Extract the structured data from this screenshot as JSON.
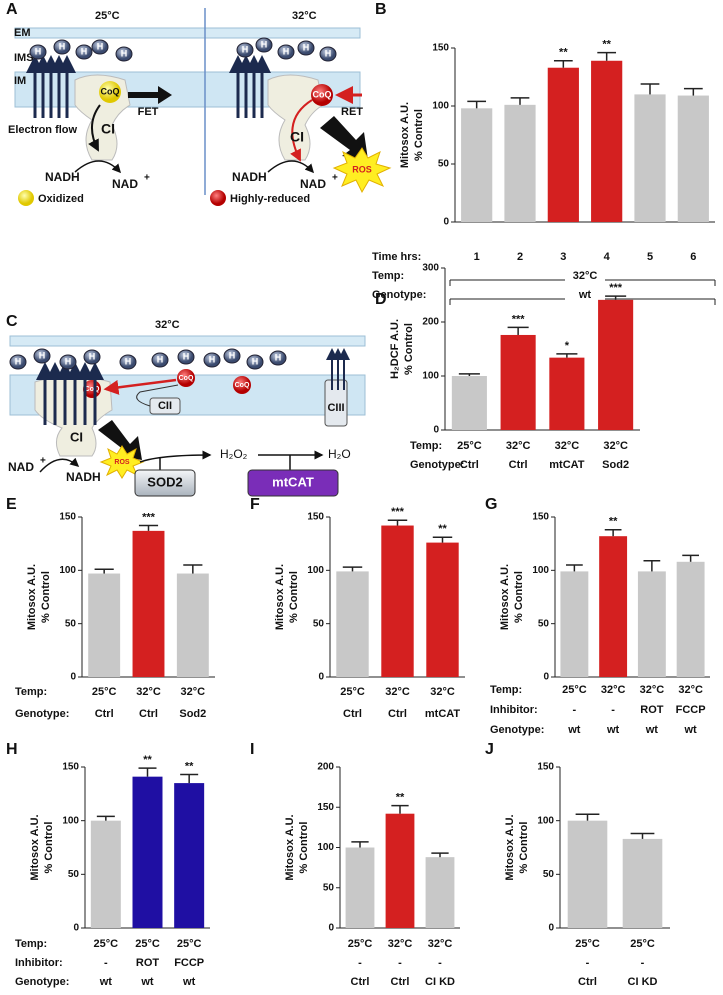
{
  "diagram_a": {
    "panel": "A",
    "temp_left": "25°C",
    "temp_right": "32°C",
    "em": "EM",
    "ims": "IMS",
    "im": "IM",
    "proton": "H",
    "coq": "CoQ",
    "fet": "FET",
    "ret": "RET",
    "ci": "CI",
    "electron_flow": "Electron flow",
    "nadh": "NADH",
    "nad": "NAD",
    "nad_sup": "+",
    "ros": "ROS",
    "oxidized": "Oxidized",
    "highly_reduced": "Highly-reduced"
  },
  "diagram_c": {
    "panel": "C",
    "temp": "32°C",
    "proton": "H",
    "coq": "CoQ",
    "cii": "CII",
    "ciii": "CIII",
    "ci": "CI",
    "ros": "ROS",
    "nad": "NAD",
    "nad_sup": "+",
    "nadh": "NADH",
    "h2o2": "H₂O₂",
    "h2o": "H₂O",
    "sod2": "SOD2",
    "mtcat": "mtCAT"
  },
  "chart_data": [
    {
      "type": "bar",
      "panel": "B",
      "ylabel": [
        "Mitosox A.U.",
        "% Control"
      ],
      "ylim": [
        0,
        150
      ],
      "yticks": [
        0,
        50,
        100,
        150
      ],
      "values": [
        98,
        101,
        133,
        139,
        110,
        109
      ],
      "errors": [
        6,
        6,
        6,
        7,
        9,
        6
      ],
      "colors": [
        "#c8c8c8",
        "#c8c8c8",
        "#d42020",
        "#d42020",
        "#c8c8c8",
        "#c8c8c8"
      ],
      "significance": [
        null,
        null,
        "**",
        "**",
        null,
        null
      ],
      "rows": [
        {
          "label": "Time hrs:",
          "values": [
            "1",
            "2",
            "3",
            "4",
            "5",
            "6"
          ]
        },
        {
          "label": "Temp:",
          "span": "32°C"
        },
        {
          "label": "Genotype:",
          "span": "wt"
        }
      ]
    },
    {
      "type": "bar",
      "panel": "D",
      "ylabel": [
        "H₂DCF A.U.",
        "% Control"
      ],
      "ylim": [
        0,
        300
      ],
      "yticks": [
        0,
        100,
        200,
        300
      ],
      "values": [
        100,
        176,
        134,
        241
      ],
      "errors": [
        4,
        14,
        7,
        7
      ],
      "colors": [
        "#c8c8c8",
        "#d42020",
        "#d42020",
        "#d42020"
      ],
      "significance": [
        null,
        "***",
        "*",
        "***"
      ],
      "rows": [
        {
          "label": "Temp:",
          "values": [
            "25°C",
            "32°C",
            "32°C",
            "32°C"
          ]
        },
        {
          "label": "Genotype:",
          "values": [
            "Ctrl",
            "Ctrl",
            "mtCAT",
            "Sod2"
          ]
        }
      ]
    },
    {
      "type": "bar",
      "panel": "E",
      "ylabel": [
        "Mitosox A.U.",
        "% Control"
      ],
      "ylim": [
        0,
        150
      ],
      "yticks": [
        0,
        50,
        100,
        150
      ],
      "values": [
        97,
        137,
        97
      ],
      "errors": [
        4,
        5,
        8
      ],
      "colors": [
        "#c8c8c8",
        "#d42020",
        "#c8c8c8"
      ],
      "significance": [
        null,
        "***",
        null
      ],
      "rows": [
        {
          "label": "Temp:",
          "values": [
            "25°C",
            "32°C",
            "32°C"
          ]
        },
        {
          "label": "Genotype:",
          "values": [
            "Ctrl",
            "Ctrl",
            "Sod2"
          ]
        }
      ]
    },
    {
      "type": "bar",
      "panel": "F",
      "ylabel": [
        "Mitosox A.U.",
        "% Control"
      ],
      "ylim": [
        0,
        150
      ],
      "yticks": [
        0,
        50,
        100,
        150
      ],
      "values": [
        99,
        142,
        126
      ],
      "errors": [
        4,
        5,
        5
      ],
      "colors": [
        "#c8c8c8",
        "#d42020",
        "#d42020"
      ],
      "significance": [
        null,
        "***",
        "**"
      ],
      "rows": [
        {
          "values": [
            "25°C",
            "32°C",
            "32°C"
          ]
        },
        {
          "values": [
            "Ctrl",
            "Ctrl",
            "mtCAT"
          ]
        }
      ]
    },
    {
      "type": "bar",
      "panel": "G",
      "ylabel": [
        "Mitosox A.U.",
        "% Control"
      ],
      "ylim": [
        0,
        150
      ],
      "yticks": [
        0,
        50,
        100,
        150
      ],
      "values": [
        99,
        132,
        99,
        108
      ],
      "errors": [
        6,
        6,
        10,
        6
      ],
      "colors": [
        "#c8c8c8",
        "#d42020",
        "#c8c8c8",
        "#c8c8c8"
      ],
      "significance": [
        null,
        "**",
        null,
        null
      ],
      "rows": [
        {
          "label": "Temp:",
          "values": [
            "25°C",
            "32°C",
            "32°C",
            "32°C"
          ]
        },
        {
          "label": "Inhibitor:",
          "values": [
            "-",
            "-",
            "ROT",
            "FCCP"
          ]
        },
        {
          "label": "Genotype:",
          "values": [
            "wt",
            "wt",
            "wt",
            "wt"
          ]
        }
      ]
    },
    {
      "type": "bar",
      "panel": "H",
      "ylabel": [
        "Mitosox A.U.",
        "% Control"
      ],
      "ylim": [
        0,
        150
      ],
      "yticks": [
        0,
        50,
        100,
        150
      ],
      "values": [
        100,
        141,
        135
      ],
      "errors": [
        4,
        8,
        8
      ],
      "colors": [
        "#c8c8c8",
        "#1f0fa3",
        "#1f0fa3"
      ],
      "significance": [
        null,
        "**",
        "**"
      ],
      "rows": [
        {
          "label": "Temp:",
          "values": [
            "25°C",
            "25°C",
            "25°C"
          ]
        },
        {
          "label": "Inhibitor:",
          "values": [
            "-",
            "ROT",
            "FCCP"
          ]
        },
        {
          "label": "Genotype:",
          "values": [
            "wt",
            "wt",
            "wt"
          ]
        }
      ]
    },
    {
      "type": "bar",
      "panel": "I",
      "ylabel": [
        "Mitosox A.U.",
        "% Control"
      ],
      "ylim": [
        0,
        200
      ],
      "yticks": [
        0,
        50,
        100,
        150,
        200
      ],
      "values": [
        100,
        142,
        88
      ],
      "errors": [
        7,
        10,
        5
      ],
      "colors": [
        "#c8c8c8",
        "#d42020",
        "#c8c8c8"
      ],
      "significance": [
        null,
        "**",
        null
      ],
      "rows": [
        {
          "values": [
            "25°C",
            "32°C",
            "32°C"
          ]
        },
        {
          "values": [
            "-",
            "-",
            "-"
          ]
        },
        {
          "values": [
            "Ctrl",
            "Ctrl",
            "CI KD"
          ]
        }
      ]
    },
    {
      "type": "bar",
      "panel": "J",
      "ylabel": [
        "Mitosox A.U.",
        "% Control"
      ],
      "ylim": [
        0,
        150
      ],
      "yticks": [
        0,
        50,
        100,
        150
      ],
      "values": [
        100,
        83
      ],
      "errors": [
        6,
        5
      ],
      "colors": [
        "#c8c8c8",
        "#c8c8c8"
      ],
      "significance": [
        null,
        null
      ],
      "rows": [
        {
          "values": [
            "25°C",
            "25°C"
          ]
        },
        {
          "values": [
            "-",
            "-"
          ]
        },
        {
          "values": [
            "Ctrl",
            "CI KD"
          ]
        }
      ]
    }
  ]
}
